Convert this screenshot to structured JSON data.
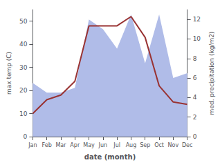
{
  "chart_data": {
    "type": "line",
    "xlabel": "date (month)",
    "ylabel": "max temp (C)",
    "y2label": "med. precipitation (kg/m2)",
    "categories": [
      "Jan",
      "Feb",
      "Mar",
      "Apr",
      "May",
      "Jun",
      "Jul",
      "Aug",
      "Sep",
      "Oct",
      "Nov",
      "Dec"
    ],
    "series": [
      {
        "type": "area",
        "color": "#b0bce8",
        "axis": "y2",
        "values": [
          5.5,
          4.5,
          4.5,
          5.0,
          12.0,
          11.0,
          9.0,
          12.5,
          7.5,
          12.5,
          6.0,
          6.5
        ]
      },
      {
        "type": "line",
        "color": "#993333",
        "values": [
          10,
          16,
          18,
          24,
          48,
          48,
          48,
          52,
          43,
          22,
          15,
          14
        ]
      }
    ],
    "ylim": [
      0,
      55
    ],
    "yticks": [
      0,
      10,
      20,
      30,
      40,
      50
    ],
    "y2lim": [
      0,
      13.0
    ],
    "y2ticks": [
      0,
      2,
      4,
      6,
      8,
      10,
      12
    ],
    "grid": false
  }
}
